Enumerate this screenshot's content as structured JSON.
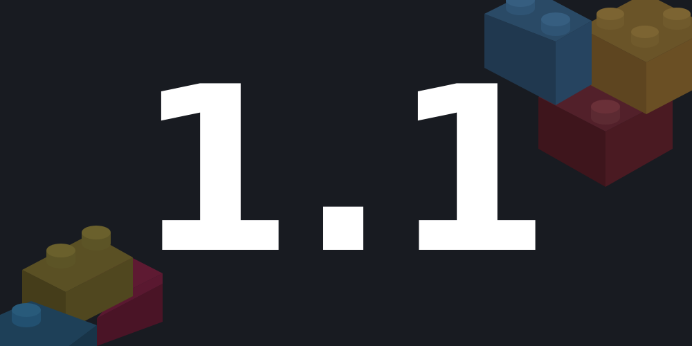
{
  "banner": {
    "version": "1.1",
    "background": "#181b21",
    "text_color": "#ffffff",
    "decoration": {
      "icon": "toy-bricks",
      "colors": {
        "blue": "#223b52",
        "yellow": "#5a4622",
        "red": "#45181f",
        "olive": "#4c441f"
      }
    }
  }
}
